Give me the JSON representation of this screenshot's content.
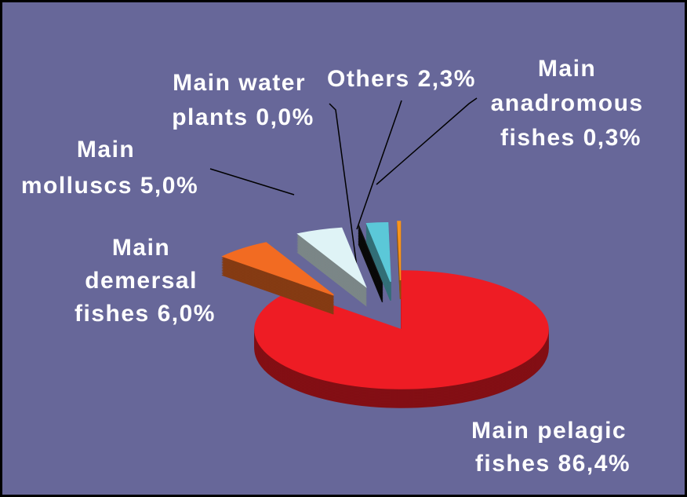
{
  "chart_data": {
    "type": "pie",
    "categories": [
      "Main pelagic fishes",
      "Main demersal fishes",
      "Main molluscs",
      "Main water plants",
      "Others",
      "Main anadromous fishes"
    ],
    "values": [
      86.4,
      6.0,
      5.0,
      0.0,
      2.3,
      0.3
    ],
    "value_labels": [
      "86,4%",
      "6,0%",
      "5,0%",
      "0,0%",
      "2,3%",
      "0,3%"
    ],
    "colors": [
      "#ee1c24",
      "#f26b22",
      "#dff3f6",
      "#111111",
      "#5bc8d8",
      "#f7941d"
    ]
  }
}
